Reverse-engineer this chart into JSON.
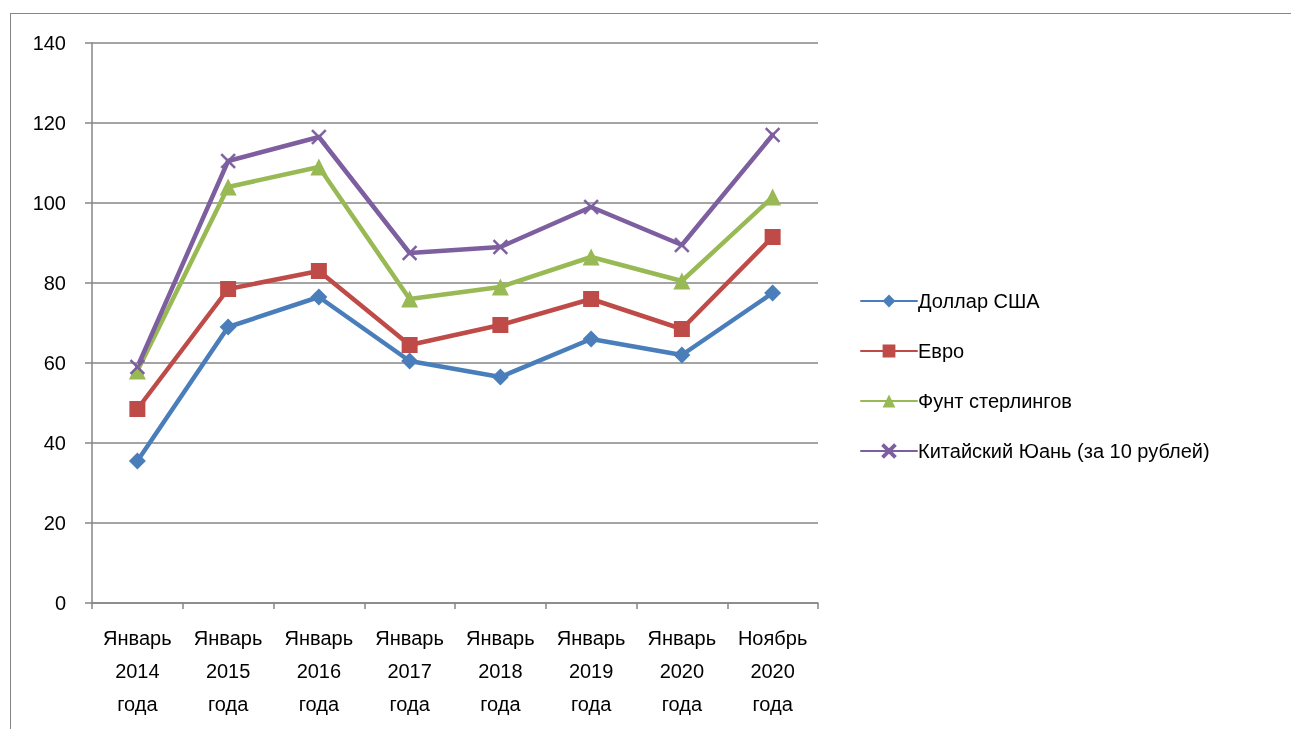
{
  "chart_data": {
    "type": "line",
    "categories": [
      "Январь 2014 года",
      "Январь 2015 года",
      "Январь 2016 года",
      "Январь 2017 года",
      "Январь 2018 года",
      "Январь 2019 года",
      "Январь 2020 года",
      "Ноябрь 2020 года"
    ],
    "ylim": [
      0,
      140
    ],
    "yticks": [
      0,
      20,
      40,
      60,
      80,
      100,
      120,
      140
    ],
    "grid": "y",
    "legend": "right",
    "series": [
      {
        "name": "Доллар США",
        "color": "#4a7ebb",
        "marker": "diamond",
        "values": [
          35.5,
          69,
          76.5,
          60.5,
          56.5,
          66,
          62,
          77.5
        ]
      },
      {
        "name": "Евро",
        "color": "#be4b48",
        "marker": "square",
        "values": [
          48.5,
          78.5,
          83,
          64.5,
          69.5,
          76,
          68.5,
          91.5
        ]
      },
      {
        "name": "Фунт стерлингов",
        "color": "#98b954",
        "marker": "triangle",
        "values": [
          58,
          104,
          109,
          76,
          79,
          86.5,
          80.5,
          101.5
        ]
      },
      {
        "name": "Китайский Юань (за 10 рублей)",
        "color": "#7d5fa0",
        "marker": "cross",
        "values": [
          59,
          110.5,
          116.5,
          87.5,
          89,
          99,
          89.5,
          117
        ]
      }
    ]
  }
}
